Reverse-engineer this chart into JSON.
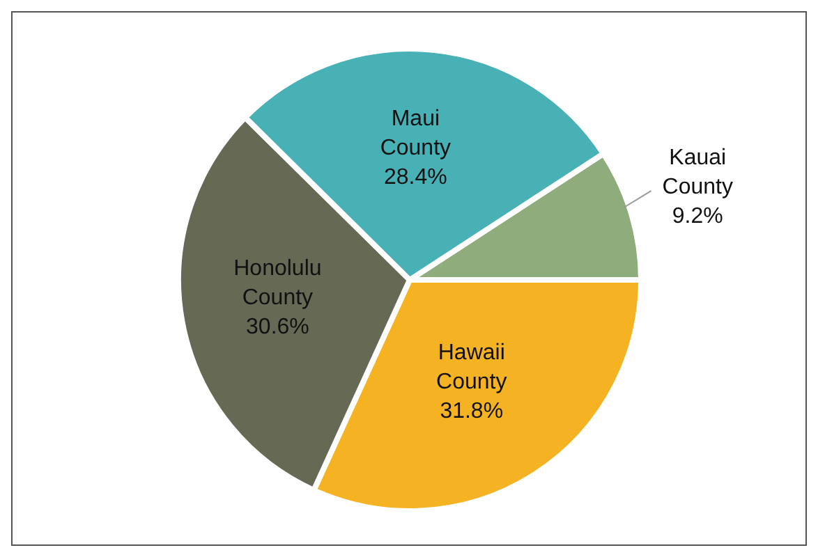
{
  "chart_data": {
    "type": "pie",
    "categories": [
      "Kauai County",
      "Hawaii County",
      "Honolulu County",
      "Maui County"
    ],
    "values": [
      9.2,
      31.8,
      30.6,
      28.4
    ],
    "value_labels": [
      "9.2%",
      "31.8%",
      "30.6%",
      "28.4%"
    ],
    "colors": [
      "#8fac7d",
      "#f5b323",
      "#666a55",
      "#47b1b5"
    ]
  }
}
